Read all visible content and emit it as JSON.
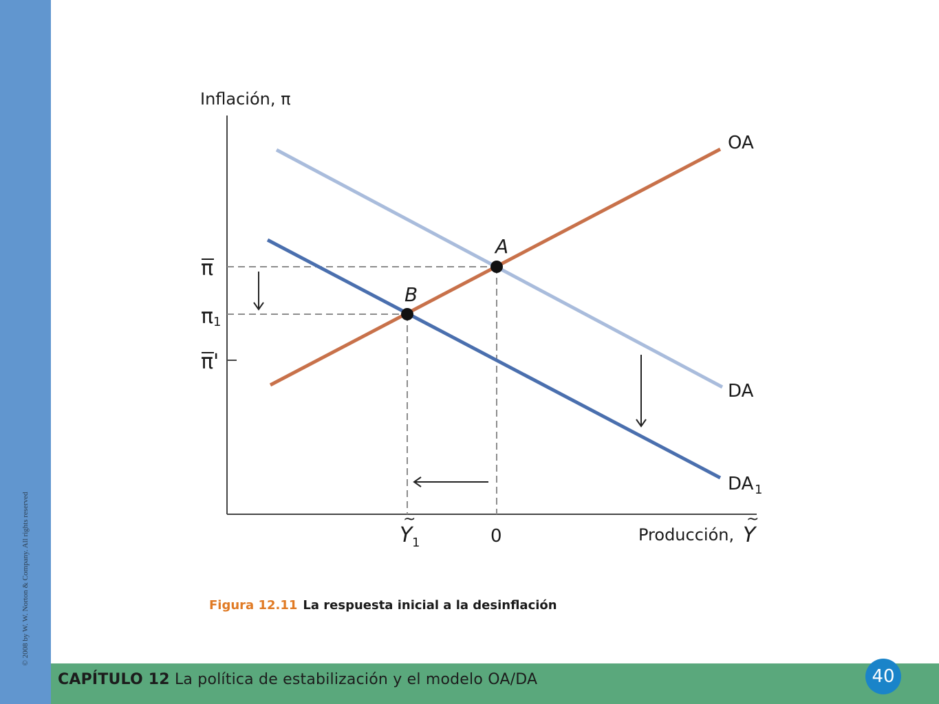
{
  "copyright": "© 2008 by W. W. Norton & Company. All rights reserved",
  "chapter": {
    "number": "CAPÍTULO 12",
    "title": "La política de estabilización y el modelo OA/DA"
  },
  "page_number": "40",
  "caption": {
    "figure": "Figura 12.11",
    "title": "La respuesta inicial a la desinflación"
  },
  "diagram": {
    "y_axis_label": "Inflación, π",
    "x_axis_label": "Producción,",
    "x_axis_symbol": "Y",
    "y_ticks": {
      "pi_bar": "π",
      "pi_1": "π",
      "pi_1_sub": "1",
      "pi_prime": "π'"
    },
    "x_ticks": {
      "y1": "Y",
      "y1_sub": "1",
      "zero": "0"
    },
    "curves": {
      "oa": "OA",
      "da": "DA",
      "da1": "DA",
      "da1_sub": "1"
    },
    "points": {
      "a": "A",
      "b": "B"
    },
    "colors": {
      "oa": "#c8714a",
      "da": "#a9bcdc",
      "da1": "#4a6fae",
      "dashed": "#8c8c8c"
    }
  }
}
